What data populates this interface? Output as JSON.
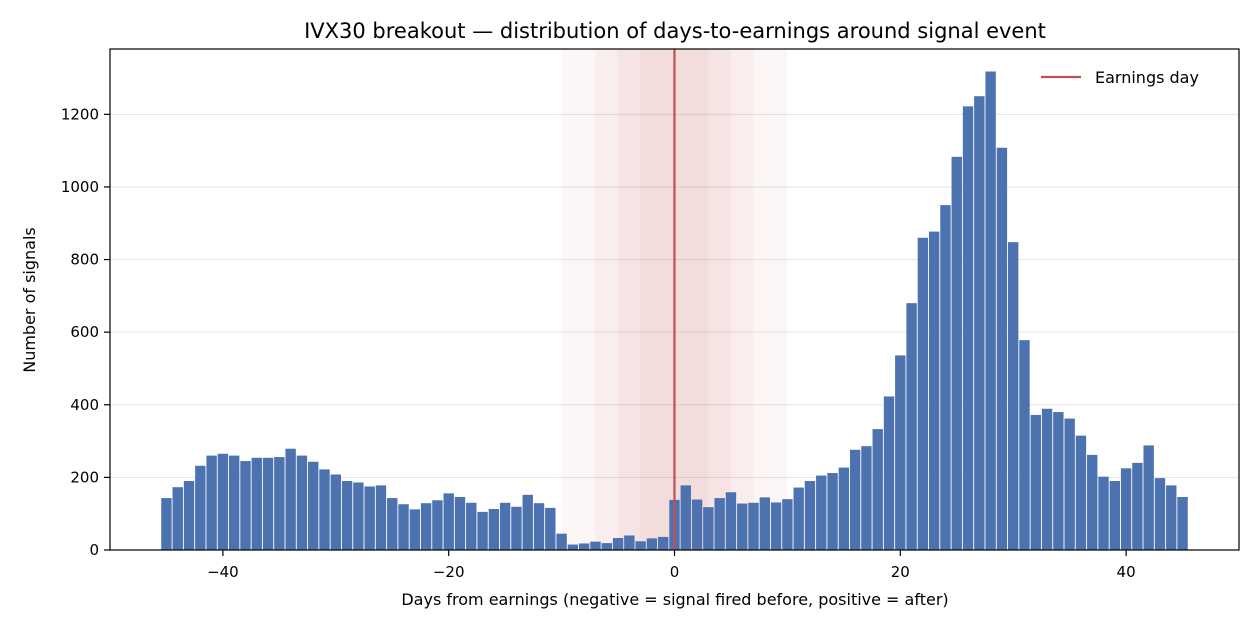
{
  "chart_data": {
    "type": "bar",
    "title": "IVX30 breakout — distribution of days-to-earnings around signal event",
    "xlabel": "Days from earnings (negative = signal fired before, positive = after)",
    "ylabel": "Number of signals",
    "xlim": [
      -50,
      50
    ],
    "ylim": [
      0,
      1380
    ],
    "xticks": [
      -40,
      -20,
      0,
      20,
      40
    ],
    "xtick_labels": [
      "−40",
      "−20",
      "0",
      "20",
      "40"
    ],
    "yticks": [
      0,
      200,
      400,
      600,
      800,
      1000,
      1200
    ],
    "ytick_labels": [
      "0",
      "200",
      "400",
      "600",
      "800",
      "1000",
      "1200"
    ],
    "grid": "y",
    "bar_color": "#4c72b0",
    "x": [
      -45,
      -44,
      -43,
      -42,
      -41,
      -40,
      -39,
      -38,
      -37,
      -36,
      -35,
      -34,
      -33,
      -32,
      -31,
      -30,
      -29,
      -28,
      -27,
      -26,
      -25,
      -24,
      -23,
      -22,
      -21,
      -20,
      -19,
      -18,
      -17,
      -16,
      -15,
      -14,
      -13,
      -12,
      -11,
      -10,
      -9,
      -8,
      -7,
      -6,
      -5,
      -4,
      -3,
      -2,
      -1,
      0,
      1,
      2,
      3,
      4,
      5,
      6,
      7,
      8,
      9,
      10,
      11,
      12,
      13,
      14,
      15,
      16,
      17,
      18,
      19,
      20,
      21,
      22,
      23,
      24,
      25,
      26,
      27,
      28,
      29,
      30,
      31,
      32,
      33,
      34,
      35,
      36,
      37,
      38,
      39,
      40,
      41,
      42,
      43,
      44,
      45
    ],
    "values": [
      143,
      173,
      190,
      232,
      260,
      265,
      260,
      245,
      254,
      254,
      256,
      279,
      260,
      243,
      222,
      208,
      190,
      186,
      175,
      178,
      143,
      126,
      112,
      129,
      137,
      156,
      146,
      130,
      105,
      113,
      130,
      119,
      152,
      129,
      116,
      45,
      15,
      18,
      23,
      19,
      33,
      40,
      24,
      32,
      36,
      138,
      178,
      139,
      118,
      143,
      159,
      128,
      130,
      145,
      131,
      140,
      172,
      190,
      205,
      212,
      227,
      276,
      286,
      333,
      423,
      536,
      680,
      860,
      877,
      950,
      1083,
      1222,
      1250,
      1318,
      1108,
      848,
      578,
      372,
      389,
      380,
      362,
      315,
      262,
      202,
      190,
      225,
      240,
      288,
      198,
      178,
      146
    ],
    "windows": [
      {
        "from": -10,
        "to": 10,
        "opacity": 0.05
      },
      {
        "from": -7,
        "to": 7,
        "opacity": 0.05
      },
      {
        "from": -5,
        "to": 5,
        "opacity": 0.05
      },
      {
        "from": -3,
        "to": 3,
        "opacity": 0.05
      }
    ],
    "window_color": "#c44e52",
    "vline": {
      "x": 0,
      "color": "#c44e52",
      "label": "Earnings day"
    },
    "legend": {
      "position": "top-right",
      "entries": [
        "Earnings day"
      ]
    }
  }
}
